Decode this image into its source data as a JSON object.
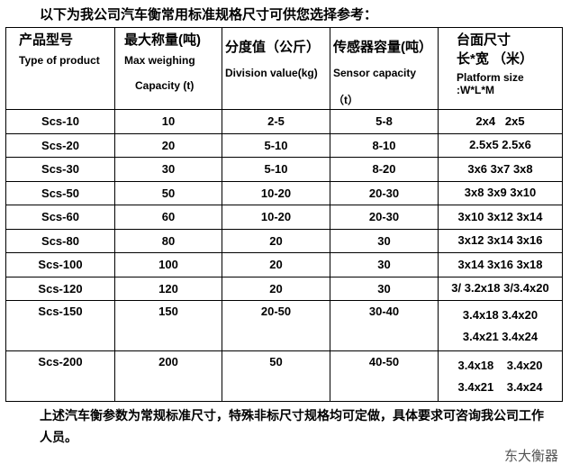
{
  "intro": "以下为我公司汽车衡常用标准规格尺寸可供您选择参考：",
  "headers": [
    {
      "cn": "产品型号",
      "en": "Type of product",
      "en2": ""
    },
    {
      "cn": "最大称量(吨)",
      "en": "Max weighing",
      "en2": "Capacity (t)"
    },
    {
      "cn": "分度值（公斤）",
      "en": "Division value(kg)",
      "en2": ""
    },
    {
      "cn": "传感器容量(吨）",
      "en": "Sensor capacity",
      "en2": "（t）"
    },
    {
      "cn": "台面尺寸",
      "en": "长*宽 （米）",
      "en2": "Platform size :W*L*M"
    }
  ],
  "rows": [
    {
      "model": "Scs-10",
      "cap": "10",
      "div": "2-5",
      "sensor": "5-8",
      "size": [
        "2x4   2x5"
      ]
    },
    {
      "model": "Scs-20",
      "cap": "20",
      "div": "5-10",
      "sensor": "8-10",
      "size": [
        "2.5x5 2.5x6"
      ]
    },
    {
      "model": "Scs-30",
      "cap": "30",
      "div": "5-10",
      "sensor": "8-20",
      "size": [
        "3x6 3x7 3x8"
      ]
    },
    {
      "model": "Scs-50",
      "cap": "50",
      "div": "10-20",
      "sensor": "20-30",
      "size": [
        "3x8 3x9 3x10"
      ]
    },
    {
      "model": "Scs-60",
      "cap": "60",
      "div": "10-20",
      "sensor": "20-30",
      "size": [
        "3x10 3x12 3x14"
      ]
    },
    {
      "model": "Scs-80",
      "cap": "80",
      "div": "20",
      "sensor": "30",
      "size": [
        "3x12 3x14 3x16"
      ]
    },
    {
      "model": "Scs-100",
      "cap": "100",
      "div": "20",
      "sensor": "30",
      "size": [
        "3x14 3x16 3x18"
      ]
    },
    {
      "model": "Scs-120",
      "cap": "120",
      "div": "20",
      "sensor": "30",
      "size": [
        "3/ 3.2x18 3/3.4x20"
      ]
    },
    {
      "model": "Scs-150",
      "cap": "150",
      "div": "20-50",
      "sensor": "30-40",
      "size": [
        "3.4x18 3.4x20",
        "3.4x21 3.4x24"
      ]
    },
    {
      "model": "Scs-200",
      "cap": "200",
      "div": "50",
      "sensor": "40-50",
      "size": [
        "3.4x18    3.4x20",
        "3.4x21    3.4x24"
      ]
    }
  ],
  "footer": "上述汽车衡参数为常规标准尺寸，特殊非标尺寸规格均可定做，具体要求可咨询我公司工作人员。",
  "watermark": "东大衡器"
}
